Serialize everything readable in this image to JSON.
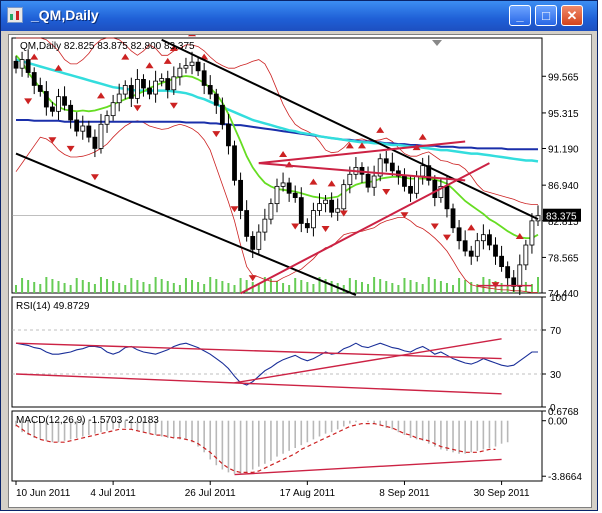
{
  "window": {
    "title": "_QM,Daily",
    "minimize_label": "_",
    "maximize_label": "□",
    "close_label": "✕"
  },
  "colors": {
    "bull": "#ffffff",
    "bear": "#000000",
    "bollinger": "#cc2222",
    "ma_fast": "#66dd22",
    "ma_mid": "#33dddd",
    "ma_slow": "#1a2faa",
    "trend": "#cc2244",
    "channel": "#000000",
    "rsi_line": "#1a2f99",
    "macd_hist": "#b8b8b8",
    "macd_signal": "#cc2222",
    "volume": "#66cc55"
  },
  "chart_data": [
    {
      "type": "candlestick",
      "title": "QM,Daily",
      "ohlc_label": "82.825 83.875 82.800 83.375",
      "last_price": "83.375",
      "ylim": [
        74.44,
        104.0
      ],
      "y_ticks": [
        "99.565",
        "95.315",
        "91.190",
        "86.940",
        "82.815",
        "78.565",
        "74.440"
      ],
      "x_ticks": [
        "10 Jun 2011",
        "4 Jul 2011",
        "26 Jul 2011",
        "17 Aug 2011",
        "8 Sep 2011",
        "30 Sep 2011"
      ],
      "close": [
        100.5,
        101.5,
        100.0,
        98.5,
        97.8,
        96.0,
        95.5,
        97.2,
        96.2,
        94.5,
        93.2,
        93.8,
        92.5,
        91.2,
        94.0,
        95.0,
        96.5,
        97.5,
        98.5,
        97.0,
        99.2,
        98.2,
        97.5,
        99.0,
        99.3,
        98.0,
        99.5,
        100.5,
        100.8,
        101.2,
        100.2,
        98.5,
        97.5,
        96.2,
        94.0,
        91.5,
        87.5,
        84.0,
        81.0,
        79.5,
        81.5,
        83.0,
        84.8,
        86.8,
        87.2,
        86.0,
        85.5,
        82.5,
        82.0,
        84.0,
        84.8,
        85.2,
        83.8,
        84.2,
        87.0,
        88.2,
        89.0,
        88.2,
        86.7,
        88.0,
        90.0,
        89.5,
        88.6,
        88.0,
        86.8,
        86.0,
        88.0,
        89.2,
        87.5,
        85.5,
        86.8,
        84.2,
        82.0,
        80.5,
        79.3,
        78.7,
        80.5,
        81.2,
        80.0,
        78.7,
        77.5,
        76.2,
        75.2,
        77.7,
        80.0,
        82.8,
        83.4
      ],
      "bollinger_upper": [
        104,
        104,
        104,
        104,
        104,
        103.8,
        103.2,
        102.5,
        101.5,
        101.0,
        101.0,
        101.5,
        102.2,
        103.2,
        103.8,
        104,
        104,
        103.8,
        103.2,
        102.5,
        102.0,
        102.5,
        103.2,
        102.8,
        102.0,
        102.0,
        102.5,
        102.8,
        103.2,
        103.2,
        103.0,
        102.5,
        101.8,
        101.2,
        100.8,
        100.5,
        100.5,
        100.8,
        101.0,
        101.3,
        101.5,
        101.0,
        99.7,
        98.0,
        96.3,
        95.0,
        94.0,
        93.5,
        93.2,
        92.8,
        92.0,
        91.0,
        90.7,
        90.8,
        91.3,
        92.0,
        92.2,
        92.3,
        92.1,
        92.1,
        92.2,
        92.4,
        92.0,
        91.3,
        90.6,
        90.3,
        90.3,
        90.6,
        90.8,
        90.3,
        89.8,
        89.7,
        89.4,
        89.3,
        88.8,
        88.0,
        87.0,
        86.3,
        86.1,
        85.9,
        85.7,
        85.5,
        85.3,
        85.0,
        84.8,
        84.7,
        84.7
      ],
      "bollinger_lower": [
        88.5,
        89.5,
        90.5,
        91.5,
        92.5,
        92.3,
        91.8,
        91.0,
        90.5,
        90.2,
        90.2,
        90.3,
        90.5,
        90.8,
        91.2,
        91.7,
        92.5,
        93.2,
        93.8,
        94.2,
        94.4,
        94.2,
        93.8,
        93.6,
        93.4,
        93.5,
        93.8,
        94.0,
        93.8,
        93.5,
        93.0,
        92.2,
        91.0,
        89.0,
        87.0,
        85.0,
        82.8,
        80.0,
        77.5,
        76.5,
        76.3,
        76.0,
        75.8,
        75.8,
        76.2,
        76.5,
        76.9,
        77.2,
        77.8,
        78.4,
        79.2,
        79.7,
        79.8,
        80.5,
        81.2,
        81.4,
        81.5,
        81.6,
        81.8,
        82.0,
        82.5,
        82.8,
        83.0,
        83.2,
        83.2,
        82.8,
        82.2,
        81.9,
        81.4,
        80.8,
        80.1,
        79.3,
        78.2,
        77.0,
        76.0,
        75.4,
        75.2,
        75.1,
        75.0,
        74.9,
        74.8,
        74.8,
        74.7,
        74.7,
        74.6,
        74.5,
        74.5
      ],
      "ma_fast": [
        102.0,
        101.2,
        100.0,
        99.1,
        98.2,
        97.3,
        96.5,
        96.0,
        95.7,
        95.6,
        95.5,
        95.6,
        95.5,
        95.6,
        95.8,
        96.0,
        96.3,
        96.6,
        96.9,
        97.2,
        97.5,
        97.8,
        98.2,
        98.5,
        98.8,
        99.0,
        99.3,
        99.5,
        99.6,
        99.5,
        99.2,
        98.8,
        98.2,
        97.5,
        96.5,
        95.2,
        93.6,
        92.0,
        90.3,
        89.0,
        88.0,
        87.2,
        86.8,
        86.5,
        86.4,
        86.3,
        86.2,
        86.0,
        85.8,
        85.6,
        85.5,
        85.4,
        85.5,
        85.6,
        86.1,
        86.6,
        87.0,
        87.2,
        87.3,
        87.4,
        87.7,
        87.8,
        87.9,
        87.9,
        87.8,
        87.7,
        87.7,
        87.7,
        87.7,
        87.6,
        87.4,
        87.1,
        86.5,
        85.8,
        85.1,
        84.6,
        84.1,
        83.6,
        83.0,
        82.6,
        82.1,
        81.6,
        81.2,
        80.9,
        80.8,
        80.8,
        81.2
      ],
      "ma_mid": [
        101.5,
        101.3,
        101.1,
        100.9,
        100.7,
        100.5,
        100.3,
        100.1,
        99.9,
        99.7,
        99.5,
        99.3,
        99.1,
        98.9,
        98.7,
        98.5,
        98.3,
        98.2,
        98.1,
        98.0,
        97.9,
        97.9,
        97.9,
        97.9,
        97.9,
        97.9,
        97.8,
        97.7,
        97.6,
        97.4,
        97.1,
        96.9,
        96.6,
        96.3,
        96.0,
        95.7,
        95.4,
        95.1,
        94.8,
        94.5,
        94.3,
        94.1,
        93.9,
        93.7,
        93.5,
        93.3,
        93.2,
        93.0,
        92.9,
        92.8,
        92.6,
        92.5,
        92.4,
        92.3,
        92.2,
        92.1,
        92.0,
        91.9,
        91.9,
        91.8,
        91.8,
        91.7,
        91.6,
        91.6,
        91.5,
        91.4,
        91.4,
        91.3,
        91.2,
        91.1,
        91.0,
        91.0,
        90.9,
        90.8,
        90.7,
        90.6,
        90.6,
        90.5,
        90.4,
        90.3,
        90.2,
        90.1,
        90.0,
        89.9,
        89.8,
        89.8,
        89.7
      ],
      "ma_slow": [
        94.5,
        94.5,
        94.5,
        94.4,
        94.4,
        94.4,
        94.4,
        94.4,
        94.3,
        94.3,
        94.3,
        94.3,
        94.3,
        94.3,
        94.3,
        94.3,
        94.3,
        94.3,
        94.3,
        94.3,
        94.3,
        94.3,
        94.3,
        94.3,
        94.3,
        94.3,
        94.3,
        94.3,
        94.2,
        94.2,
        94.2,
        94.2,
        94.1,
        94.1,
        94.0,
        94.0,
        93.9,
        93.9,
        93.8,
        93.7,
        93.6,
        93.5,
        93.4,
        93.3,
        93.2,
        93.1,
        93.0,
        92.9,
        92.8,
        92.7,
        92.6,
        92.5,
        92.4,
        92.3,
        92.2,
        92.2,
        92.1,
        92.0,
        92.0,
        91.9,
        91.9,
        91.8,
        91.8,
        91.7,
        91.7,
        91.6,
        91.6,
        91.5,
        91.5,
        91.5,
        91.4,
        91.4,
        91.4,
        91.3,
        91.3,
        91.3,
        91.2,
        91.2,
        91.2,
        91.2,
        91.2,
        91.1,
        91.1,
        91.1,
        91.1,
        91.1,
        91.1
      ],
      "channel_upper": {
        "x": [
          24,
          86
        ],
        "y": [
          103.8,
          83.0
        ]
      },
      "channel_lower": {
        "x": [
          0,
          56
        ],
        "y": [
          90.6,
          74.2
        ]
      },
      "fan_line": {
        "x": [
          37,
          78
        ],
        "y": [
          74.4,
          89.5
        ]
      },
      "triangle_upper": {
        "x": [
          40,
          74
        ],
        "y": [
          89.5,
          92.0
        ]
      },
      "triangle_lower": {
        "x": [
          40,
          74
        ],
        "y": [
          89.5,
          87.5
        ]
      },
      "support_line": {
        "x": [
          76,
          85
        ],
        "y": [
          75.3,
          75.3
        ]
      },
      "fractal_up_idx": [
        1,
        3,
        7,
        14,
        18,
        22,
        25,
        26,
        29,
        31,
        44,
        45,
        49,
        52,
        55,
        57,
        60,
        66,
        67,
        75,
        83
      ],
      "fractal_down_idx": [
        2,
        6,
        9,
        13,
        20,
        26,
        33,
        36,
        39,
        46,
        51,
        54,
        61,
        64,
        69,
        71,
        79
      ]
    },
    {
      "type": "line",
      "title": "RSI(14) 49.8729",
      "ylim": [
        0,
        100
      ],
      "y_ticks": [
        "100",
        "70",
        "30",
        "0"
      ],
      "values": [
        58,
        57,
        56,
        54,
        53,
        50,
        48,
        48,
        49,
        50,
        52,
        53,
        55,
        55,
        54,
        50,
        48,
        50,
        54,
        55,
        52,
        50,
        49,
        48,
        50,
        52,
        55,
        57,
        58,
        56,
        54,
        51,
        48,
        44,
        40,
        35,
        28,
        22,
        20,
        23,
        28,
        33,
        36,
        40,
        43,
        45,
        47,
        44,
        42,
        44,
        47,
        50,
        48,
        49,
        53,
        55,
        58,
        55,
        54,
        56,
        58,
        56,
        54,
        53,
        51,
        50,
        53,
        55,
        52,
        48,
        50,
        47,
        44,
        42,
        40,
        39,
        41,
        44,
        42,
        40,
        38,
        37,
        38,
        42,
        46,
        50,
        50
      ],
      "trend_upper": {
        "x": [
          0,
          80
        ],
        "y": [
          58,
          44
        ]
      },
      "trend_lower": {
        "x": [
          0,
          80
        ],
        "y": [
          30,
          12
        ]
      },
      "trend_rising": {
        "x": [
          36,
          80
        ],
        "y": [
          22,
          62
        ]
      }
    },
    {
      "type": "bar",
      "title": "MACD(12,26,9) -1.5703 -2.0183",
      "y_ticks": [
        "0.6768",
        "0.00",
        "-3.8664"
      ],
      "ylim": [
        -4.2,
        0.6768
      ],
      "histogram": [
        -0.4,
        -0.8,
        -1.0,
        -1.2,
        -1.3,
        -1.4,
        -1.5,
        -1.5,
        -1.4,
        -1.3,
        -1.2,
        -1.1,
        -1.0,
        -0.9,
        -0.8,
        -0.7,
        -0.6,
        -0.5,
        -0.5,
        -0.6,
        -0.7,
        -0.8,
        -0.9,
        -1.0,
        -1.1,
        -1.2,
        -1.2,
        -1.3,
        -1.3,
        -1.5,
        -1.8,
        -2.2,
        -2.7,
        -3.1,
        -3.4,
        -3.6,
        -3.7,
        -3.7,
        -3.6,
        -3.4,
        -3.2,
        -3.0,
        -2.8,
        -2.5,
        -2.3,
        -2.1,
        -1.9,
        -1.7,
        -1.5,
        -1.3,
        -1.1,
        -0.9,
        -0.8,
        -0.6,
        -0.4,
        -0.2,
        -0.1,
        0.0,
        -0.1,
        -0.2,
        -0.3,
        -0.5,
        -0.6,
        -0.8,
        -1.0,
        -1.2,
        -1.3,
        -1.4,
        -1.6,
        -1.8,
        -2.0,
        -2.1,
        -2.2,
        -2.3,
        -2.3,
        -2.2,
        -2.1,
        -2.0,
        -1.9,
        -1.8,
        -1.6,
        -1.5
      ],
      "signal": [
        -0.3,
        -0.6,
        -0.9,
        -1.1,
        -1.3,
        -1.4,
        -1.5,
        -1.5,
        -1.5,
        -1.4,
        -1.3,
        -1.2,
        -1.1,
        -1.0,
        -0.9,
        -0.8,
        -0.7,
        -0.6,
        -0.6,
        -0.6,
        -0.7,
        -0.8,
        -0.9,
        -1.0,
        -1.0,
        -1.1,
        -1.2,
        -1.2,
        -1.3,
        -1.4,
        -1.6,
        -1.9,
        -2.2,
        -2.6,
        -3.0,
        -3.3,
        -3.5,
        -3.6,
        -3.6,
        -3.6,
        -3.5,
        -3.3,
        -3.1,
        -2.9,
        -2.7,
        -2.5,
        -2.3,
        -2.0,
        -1.8,
        -1.6,
        -1.4,
        -1.2,
        -1.0,
        -0.8,
        -0.6,
        -0.4,
        -0.3,
        -0.2,
        -0.2,
        -0.2,
        -0.3,
        -0.4,
        -0.5,
        -0.7,
        -0.9,
        -1.0,
        -1.2,
        -1.3,
        -1.4,
        -1.6,
        -1.8,
        -1.9,
        -2.0,
        -2.1,
        -2.2,
        -2.2,
        -2.2,
        -2.1,
        -2.0,
        -2.0
      ],
      "trend_line": {
        "x": [
          36,
          80
        ],
        "y": [
          -3.75,
          -2.7
        ]
      }
    }
  ]
}
